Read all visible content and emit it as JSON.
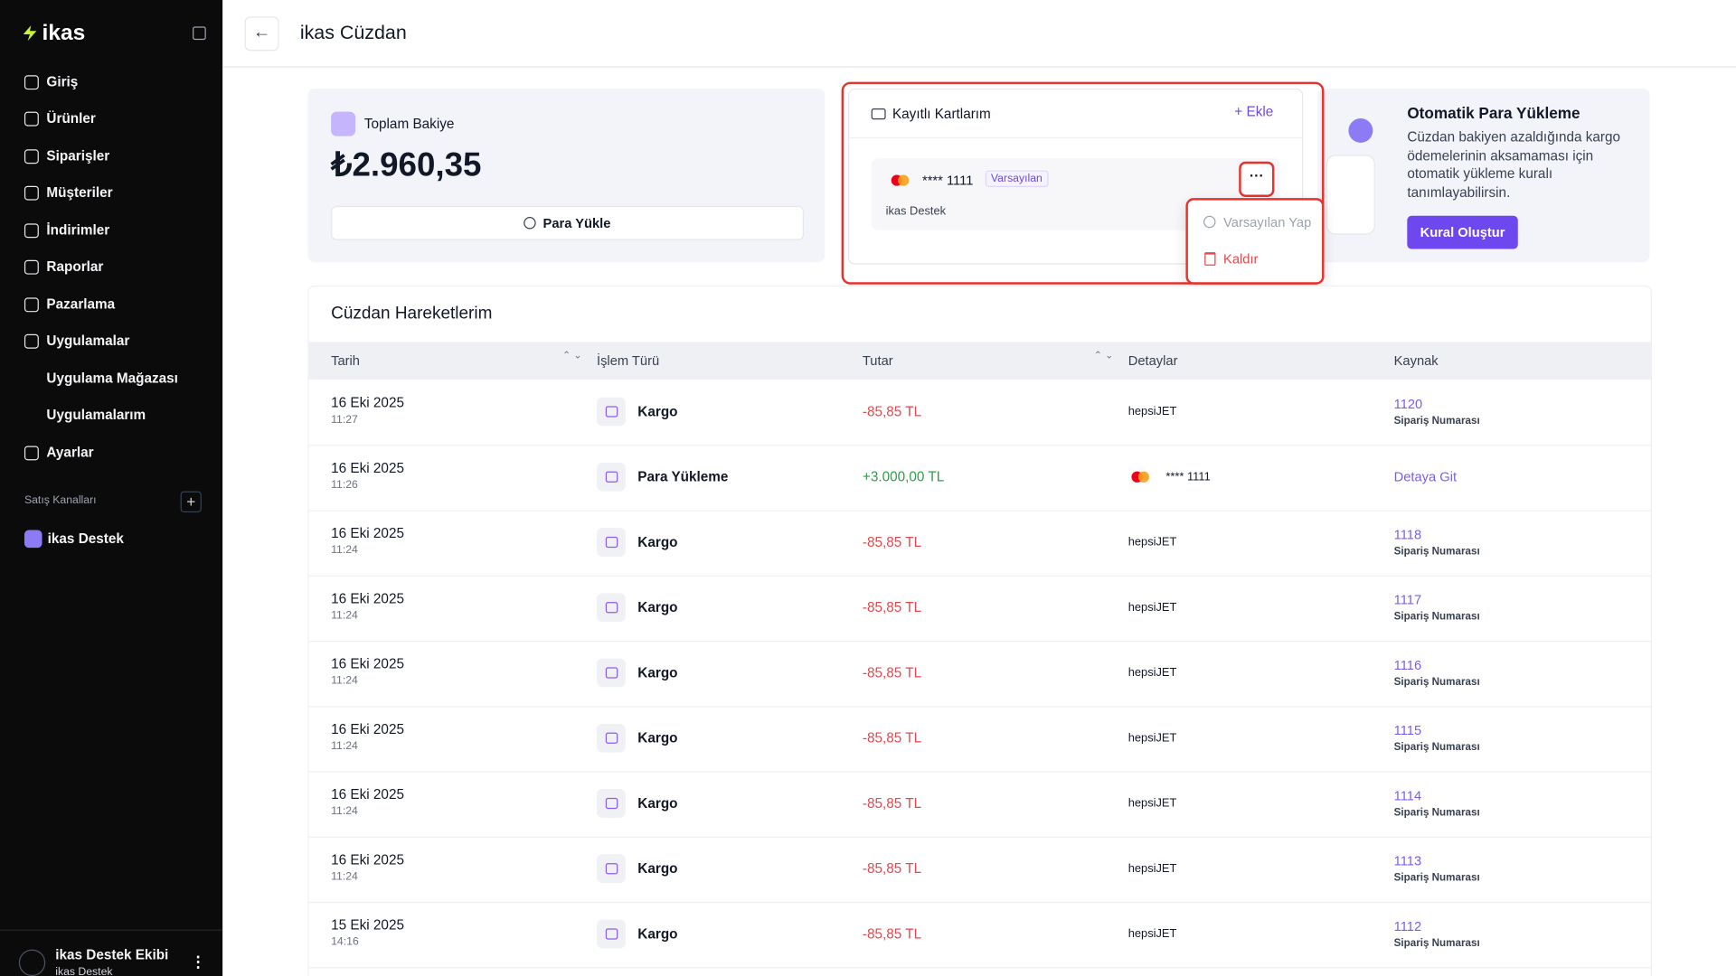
{
  "sidebar": {
    "logo": "ikas",
    "nav": [
      {
        "label": "Giriş",
        "sub": false
      },
      {
        "label": "Ürünler",
        "sub": false
      },
      {
        "label": "Siparişler",
        "sub": false
      },
      {
        "label": "Müşteriler",
        "sub": false
      },
      {
        "label": "İndirimler",
        "sub": false
      },
      {
        "label": "Raporlar",
        "sub": false
      },
      {
        "label": "Pazarlama",
        "sub": false
      },
      {
        "label": "Uygulamalar",
        "sub": false
      },
      {
        "label": "Uygulama Mağazası",
        "sub": true
      },
      {
        "label": "Uygulamalarım",
        "sub": true
      },
      {
        "label": "Ayarlar",
        "sub": false
      }
    ],
    "section": "Satış Kanalları",
    "channel": "ikas Destek",
    "user": {
      "name": "ikas Destek Ekibi",
      "org": "ikas Destek"
    }
  },
  "header": {
    "title": "ikas Cüzdan"
  },
  "balance": {
    "label": "Toplam Bakiye",
    "amount": "₺2.960,35",
    "button": "Para Yükle"
  },
  "cards": {
    "title": "Kayıtlı Kartlarım",
    "add": "Ekle",
    "items": [
      {
        "number": "**** 1111",
        "badge": "Varsayılan",
        "holder": "ikas Destek"
      }
    ],
    "menu": [
      "Varsayılan Yap",
      "Kaldır"
    ]
  },
  "autoload": {
    "title": "Otomatik Para Yükleme",
    "text": "Cüzdan bakiyen azaldığında kargo ödemelerinin aksamaması için otomatik yükleme kuralı tanımlayabilirsin.",
    "button": "Kural Oluştur"
  },
  "table": {
    "title": "Cüzdan Hareketlerim",
    "columns": [
      "Tarih",
      "İşlem Türü",
      "Tutar",
      "Detaylar",
      "Kaynak"
    ],
    "rows": [
      {
        "date": "16 Eki 2025",
        "time": "11:27",
        "type": "Kargo",
        "amount": "-85,85 TL",
        "detail": "hepsiJET",
        "source": "1120",
        "source_sub": "Sipariş Numarası"
      },
      {
        "date": "16 Eki 2025",
        "time": "11:26",
        "type": "Para Yükleme",
        "amount": "+3.000,00 TL",
        "detail_card": "**** 1111",
        "source": "Detaya Git"
      },
      {
        "date": "16 Eki 2025",
        "time": "11:24",
        "type": "Kargo",
        "amount": "-85,85 TL",
        "detail": "hepsiJET",
        "source": "1118",
        "source_sub": "Sipariş Numarası"
      },
      {
        "date": "16 Eki 2025",
        "time": "11:24",
        "type": "Kargo",
        "amount": "-85,85 TL",
        "detail": "hepsiJET",
        "source": "1117",
        "source_sub": "Sipariş Numarası"
      },
      {
        "date": "16 Eki 2025",
        "time": "11:24",
        "type": "Kargo",
        "amount": "-85,85 TL",
        "detail": "hepsiJET",
        "source": "1116",
        "source_sub": "Sipariş Numarası"
      },
      {
        "date": "16 Eki 2025",
        "time": "11:24",
        "type": "Kargo",
        "amount": "-85,85 TL",
        "detail": "hepsiJET",
        "source": "1115",
        "source_sub": "Sipariş Numarası"
      },
      {
        "date": "16 Eki 2025",
        "time": "11:24",
        "type": "Kargo",
        "amount": "-85,85 TL",
        "detail": "hepsiJET",
        "source": "1114",
        "source_sub": "Sipariş Numarası"
      },
      {
        "date": "16 Eki 2025",
        "time": "11:24",
        "type": "Kargo",
        "amount": "-85,85 TL",
        "detail": "hepsiJET",
        "source": "1113",
        "source_sub": "Sipariş Numarası"
      },
      {
        "date": "15 Eki 2025",
        "time": "14:16",
        "type": "Kargo",
        "amount": "-85,85 TL",
        "detail": "hepsiJET",
        "source": "1112",
        "source_sub": "Sipariş Numarası"
      }
    ]
  }
}
